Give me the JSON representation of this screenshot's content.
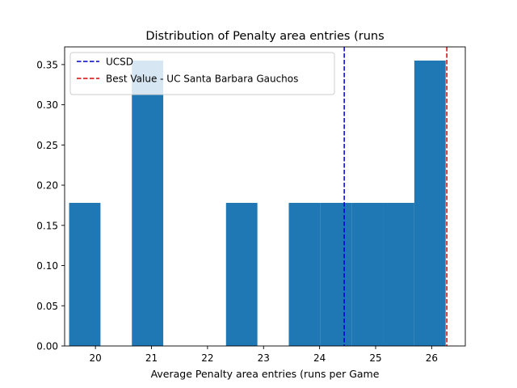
{
  "chart_data": {
    "type": "bar",
    "title": "Distribution of Penalty area entries (runs",
    "xlabel": "Average Penalty area entries (runs per Game",
    "ylabel": "",
    "xlim": [
      19.45,
      26.6
    ],
    "ylim": [
      0,
      0.372
    ],
    "x_ticks": [
      "20",
      "21",
      "22",
      "23",
      "24",
      "25",
      "26"
    ],
    "y_ticks": [
      "0.00",
      "0.05",
      "0.10",
      "0.15",
      "0.20",
      "0.25",
      "0.30",
      "0.35"
    ],
    "bins": [
      {
        "x0": 19.53,
        "x1": 20.09,
        "value": 0.178
      },
      {
        "x0": 20.65,
        "x1": 21.21,
        "value": 0.355
      },
      {
        "x0": 22.33,
        "x1": 22.89,
        "value": 0.178
      },
      {
        "x0": 23.45,
        "x1": 24.01,
        "value": 0.178
      },
      {
        "x0": 24.01,
        "x1": 24.57,
        "value": 0.178
      },
      {
        "x0": 24.57,
        "x1": 25.13,
        "value": 0.178
      },
      {
        "x0": 25.13,
        "x1": 25.69,
        "value": 0.178
      },
      {
        "x0": 25.69,
        "x1": 26.25,
        "value": 0.355
      }
    ],
    "reference_lines": [
      {
        "name": "UCSD",
        "x": 24.44,
        "color": "#0000cc",
        "style": "dashed"
      },
      {
        "name": "Best Value - UC Santa Barbara Gauchos",
        "x": 26.27,
        "color": "#dd0000",
        "style": "dashed"
      }
    ],
    "bar_color": "#1f77b4",
    "legend_position": "top-left",
    "grid": false
  }
}
